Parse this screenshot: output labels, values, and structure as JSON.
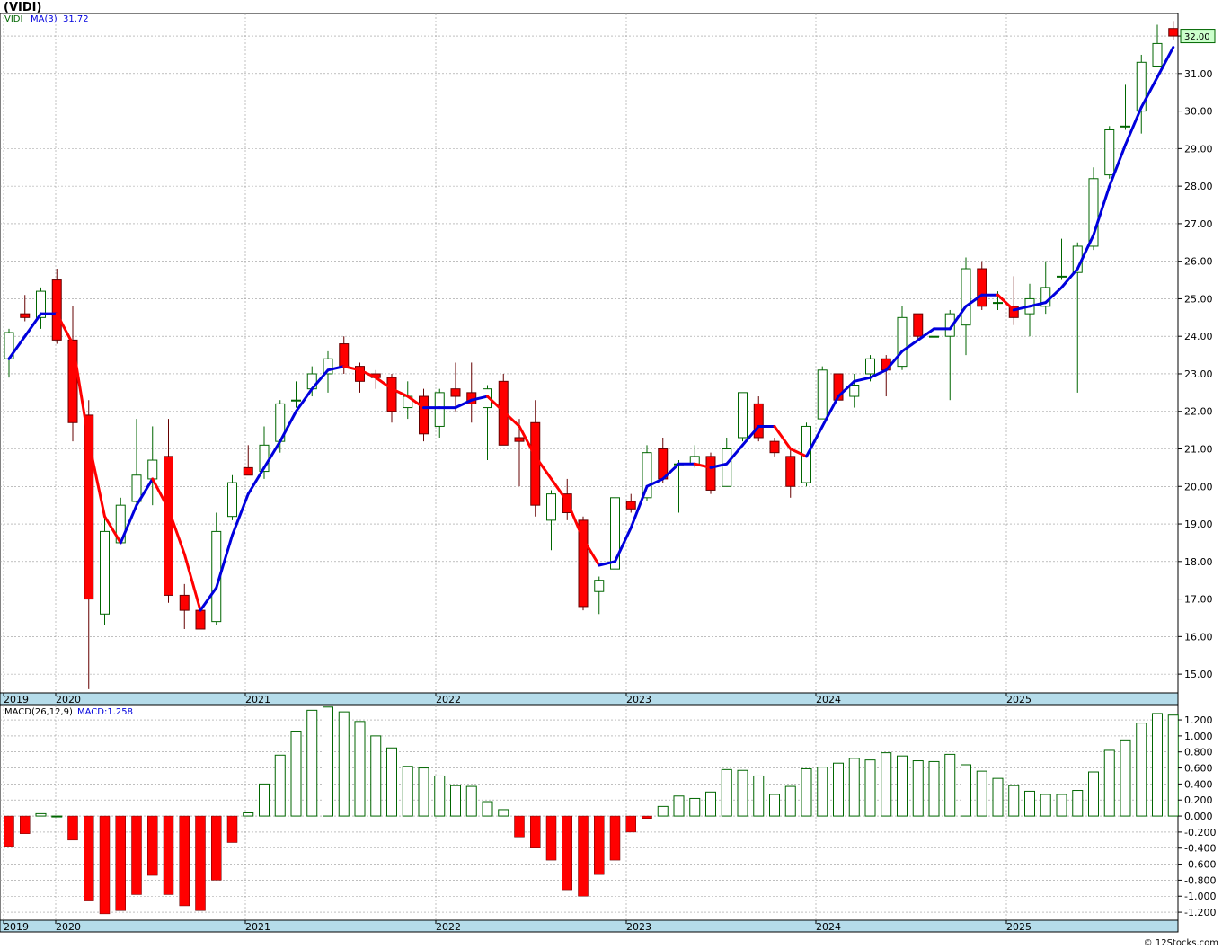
{
  "header": {
    "title": "(VIDI)"
  },
  "price_panel": {
    "legend_symbol": "VIDI",
    "legend_ma_label": "MA(3)",
    "legend_ma_value": "31.72",
    "last_price_tag": "32.00"
  },
  "macd_panel": {
    "legend_label": "MACD(26,12,9)",
    "legend_value_label": "MACD:1.258"
  },
  "footer": {
    "watermark": "© 12Stocks.com"
  },
  "colors": {
    "up": "#006600",
    "down": "#ff0000",
    "ma_up": "#0000dd",
    "ma_down": "#ff0000",
    "axis_band": "#b5dcea",
    "tag_bg": "#ccffcc"
  },
  "chart_data": [
    {
      "type": "candlestick",
      "title": "(VIDI)",
      "series_name": "VIDI",
      "frequency": "monthly",
      "ylim": [
        14.5,
        32.6
      ],
      "y_ticks": [
        15,
        16,
        17,
        18,
        19,
        20,
        21,
        22,
        23,
        24,
        25,
        26,
        27,
        28,
        29,
        30,
        31,
        32
      ],
      "y_tick_labels": [
        "15.00",
        "16.00",
        "17.00",
        "18.00",
        "19.00",
        "20.00",
        "21.00",
        "22.00",
        "23.00",
        "24.00",
        "25.00",
        "26.00",
        "27.00",
        "28.00",
        "29.00",
        "30.00",
        "31.00",
        "32.00"
      ],
      "x_year_labels": [
        "2019",
        "2020",
        "2021",
        "2022",
        "2023",
        "2024",
        "2025"
      ],
      "grid": true,
      "candles": [
        {
          "o": 23.4,
          "h": 24.2,
          "l": 22.9,
          "c": 24.1
        },
        {
          "o": 24.6,
          "h": 25.1,
          "l": 24.4,
          "c": 24.5
        },
        {
          "o": 24.5,
          "h": 25.3,
          "l": 24.2,
          "c": 25.2
        },
        {
          "o": 25.5,
          "h": 25.8,
          "l": 23.8,
          "c": 23.9
        },
        {
          "o": 23.9,
          "h": 24.8,
          "l": 21.2,
          "c": 21.7
        },
        {
          "o": 21.9,
          "h": 22.3,
          "l": 14.6,
          "c": 17.0
        },
        {
          "o": 16.6,
          "h": 19.2,
          "l": 16.3,
          "c": 18.8
        },
        {
          "o": 18.5,
          "h": 19.7,
          "l": 18.5,
          "c": 19.5
        },
        {
          "o": 19.6,
          "h": 21.8,
          "l": 19.5,
          "c": 20.3
        },
        {
          "o": 20.2,
          "h": 21.6,
          "l": 19.5,
          "c": 20.7
        },
        {
          "o": 20.8,
          "h": 21.8,
          "l": 16.9,
          "c": 17.1
        },
        {
          "o": 17.1,
          "h": 17.4,
          "l": 16.2,
          "c": 16.7
        },
        {
          "o": 16.7,
          "h": 16.8,
          "l": 16.2,
          "c": 16.2
        },
        {
          "o": 16.4,
          "h": 19.3,
          "l": 16.3,
          "c": 18.8
        },
        {
          "o": 19.2,
          "h": 20.3,
          "l": 19.1,
          "c": 20.1
        },
        {
          "o": 20.5,
          "h": 21.1,
          "l": 20.3,
          "c": 20.3
        },
        {
          "o": 20.4,
          "h": 21.6,
          "l": 20.2,
          "c": 21.1
        },
        {
          "o": 21.2,
          "h": 22.3,
          "l": 20.9,
          "c": 22.2
        },
        {
          "o": 22.3,
          "h": 22.8,
          "l": 22.1,
          "c": 22.3
        },
        {
          "o": 22.6,
          "h": 23.2,
          "l": 22.4,
          "c": 23.0
        },
        {
          "o": 23.0,
          "h": 23.6,
          "l": 22.5,
          "c": 23.4
        },
        {
          "o": 23.8,
          "h": 24.0,
          "l": 23.0,
          "c": 23.2
        },
        {
          "o": 23.2,
          "h": 23.3,
          "l": 22.5,
          "c": 22.8
        },
        {
          "o": 23.0,
          "h": 23.1,
          "l": 22.6,
          "c": 22.9
        },
        {
          "o": 22.9,
          "h": 23.0,
          "l": 21.7,
          "c": 22.0
        },
        {
          "o": 22.1,
          "h": 22.8,
          "l": 21.8,
          "c": 22.4
        },
        {
          "o": 22.4,
          "h": 22.6,
          "l": 21.2,
          "c": 21.4
        },
        {
          "o": 21.6,
          "h": 22.6,
          "l": 21.3,
          "c": 22.5
        },
        {
          "o": 22.6,
          "h": 23.3,
          "l": 22.0,
          "c": 22.4
        },
        {
          "o": 22.5,
          "h": 23.3,
          "l": 21.7,
          "c": 22.2
        },
        {
          "o": 22.1,
          "h": 22.7,
          "l": 20.7,
          "c": 22.6
        },
        {
          "o": 22.8,
          "h": 23.0,
          "l": 21.1,
          "c": 21.1
        },
        {
          "o": 21.3,
          "h": 21.8,
          "l": 20.0,
          "c": 21.2
        },
        {
          "o": 21.7,
          "h": 22.3,
          "l": 19.2,
          "c": 19.5
        },
        {
          "o": 19.1,
          "h": 19.9,
          "l": 18.3,
          "c": 19.8
        },
        {
          "o": 19.8,
          "h": 20.2,
          "l": 19.1,
          "c": 19.3
        },
        {
          "o": 19.1,
          "h": 19.2,
          "l": 16.7,
          "c": 16.8
        },
        {
          "o": 17.2,
          "h": 17.6,
          "l": 16.6,
          "c": 17.5
        },
        {
          "o": 17.8,
          "h": 19.7,
          "l": 17.7,
          "c": 19.7
        },
        {
          "o": 19.6,
          "h": 19.8,
          "l": 19.3,
          "c": 19.4
        },
        {
          "o": 19.7,
          "h": 21.1,
          "l": 19.6,
          "c": 20.9
        },
        {
          "o": 21.0,
          "h": 21.3,
          "l": 20.1,
          "c": 20.2
        },
        {
          "o": 20.6,
          "h": 20.7,
          "l": 19.3,
          "c": 20.6
        },
        {
          "o": 20.6,
          "h": 21.1,
          "l": 20.5,
          "c": 20.8
        },
        {
          "o": 20.8,
          "h": 20.9,
          "l": 19.8,
          "c": 19.9
        },
        {
          "o": 20.0,
          "h": 21.3,
          "l": 20.0,
          "c": 21.0
        },
        {
          "o": 21.3,
          "h": 22.5,
          "l": 21.2,
          "c": 22.5
        },
        {
          "o": 22.2,
          "h": 22.4,
          "l": 21.2,
          "c": 21.3
        },
        {
          "o": 21.2,
          "h": 21.3,
          "l": 20.8,
          "c": 20.9
        },
        {
          "o": 20.8,
          "h": 21.0,
          "l": 19.7,
          "c": 20.0
        },
        {
          "o": 20.1,
          "h": 21.7,
          "l": 20.0,
          "c": 21.6
        },
        {
          "o": 21.8,
          "h": 23.2,
          "l": 21.8,
          "c": 23.1
        },
        {
          "o": 23.0,
          "h": 23.0,
          "l": 22.3,
          "c": 22.3
        },
        {
          "o": 22.4,
          "h": 23.0,
          "l": 22.1,
          "c": 22.7
        },
        {
          "o": 23.0,
          "h": 23.5,
          "l": 22.8,
          "c": 23.4
        },
        {
          "o": 23.4,
          "h": 23.5,
          "l": 22.4,
          "c": 23.1
        },
        {
          "o": 23.2,
          "h": 24.8,
          "l": 23.1,
          "c": 24.5
        },
        {
          "o": 24.6,
          "h": 24.6,
          "l": 23.9,
          "c": 24.0
        },
        {
          "o": 24.0,
          "h": 24.0,
          "l": 23.8,
          "c": 24.0
        },
        {
          "o": 24.0,
          "h": 24.7,
          "l": 22.3,
          "c": 24.6
        },
        {
          "o": 24.3,
          "h": 26.1,
          "l": 23.5,
          "c": 25.8
        },
        {
          "o": 25.8,
          "h": 26.0,
          "l": 24.7,
          "c": 24.8
        },
        {
          "o": 24.9,
          "h": 25.2,
          "l": 24.7,
          "c": 24.9
        },
        {
          "o": 24.8,
          "h": 25.6,
          "l": 24.3,
          "c": 24.5
        },
        {
          "o": 24.6,
          "h": 25.4,
          "l": 24.0,
          "c": 25.0
        },
        {
          "o": 24.8,
          "h": 26.0,
          "l": 24.6,
          "c": 25.3
        },
        {
          "o": 25.6,
          "h": 26.6,
          "l": 25.5,
          "c": 25.6
        },
        {
          "o": 25.7,
          "h": 26.5,
          "l": 22.5,
          "c": 26.4
        },
        {
          "o": 26.4,
          "h": 28.5,
          "l": 26.3,
          "c": 28.2
        },
        {
          "o": 28.3,
          "h": 29.6,
          "l": 28.2,
          "c": 29.5
        },
        {
          "o": 29.6,
          "h": 30.7,
          "l": 29.5,
          "c": 29.6
        },
        {
          "o": 30.0,
          "h": 31.5,
          "l": 29.4,
          "c": 31.3
        },
        {
          "o": 31.2,
          "h": 32.3,
          "l": 31.2,
          "c": 31.8
        },
        {
          "o": 32.2,
          "h": 32.4,
          "l": 31.9,
          "c": 32.0
        }
      ],
      "ma3": [
        23.4,
        24.0,
        24.6,
        24.6,
        23.8,
        21.2,
        19.2,
        18.5,
        19.5,
        20.2,
        19.4,
        18.2,
        16.7,
        17.3,
        18.7,
        19.8,
        20.5,
        21.2,
        22.0,
        22.6,
        23.1,
        23.2,
        23.1,
        22.9,
        22.6,
        22.4,
        22.1,
        22.1,
        22.1,
        22.3,
        22.4,
        22.0,
        21.6,
        20.8,
        20.2,
        19.6,
        18.6,
        17.9,
        18.0,
        18.9,
        20.0,
        20.2,
        20.6,
        20.6,
        20.5,
        20.6,
        21.1,
        21.6,
        21.6,
        21.0,
        20.8,
        21.6,
        22.4,
        22.8,
        22.9,
        23.1,
        23.6,
        23.9,
        24.2,
        24.2,
        24.8,
        25.1,
        25.1,
        24.7,
        24.8,
        24.9,
        25.3,
        25.8,
        26.7,
        28.0,
        29.1,
        30.1,
        30.9,
        31.7
      ]
    },
    {
      "type": "bar",
      "title": "MACD(26,12,9)",
      "series_name": "MACD",
      "ylim": [
        -1.3,
        1.38
      ],
      "y_ticks": [
        -1.2,
        -1.0,
        -0.8,
        -0.6,
        -0.4,
        -0.2,
        0.0,
        0.2,
        0.4,
        0.6,
        0.8,
        1.0,
        1.2
      ],
      "y_tick_labels": [
        "-1.200",
        "-1.000",
        "-0.800",
        "-0.600",
        "-0.400",
        "-0.200",
        "0.000",
        "0.200",
        "0.400",
        "0.600",
        "0.800",
        "1.000",
        "1.200"
      ],
      "x_year_labels": [
        "2019",
        "2020",
        "2021",
        "2022",
        "2023",
        "2024",
        "2025"
      ],
      "grid": true,
      "values": [
        -0.38,
        -0.22,
        0.03,
        0.0,
        -0.3,
        -1.06,
        -1.22,
        -1.18,
        -0.98,
        -0.74,
        -0.98,
        -1.12,
        -1.18,
        -0.8,
        -0.33,
        0.04,
        0.4,
        0.76,
        1.06,
        1.32,
        1.36,
        1.3,
        1.18,
        1.0,
        0.85,
        0.62,
        0.6,
        0.5,
        0.38,
        0.37,
        0.18,
        0.08,
        -0.26,
        -0.4,
        -0.55,
        -0.92,
        -1.0,
        -0.73,
        -0.55,
        -0.2,
        -0.03,
        0.12,
        0.25,
        0.22,
        0.3,
        0.58,
        0.57,
        0.5,
        0.27,
        0.37,
        0.59,
        0.61,
        0.66,
        0.72,
        0.7,
        0.79,
        0.75,
        0.69,
        0.68,
        0.77,
        0.64,
        0.56,
        0.47,
        0.38,
        0.31,
        0.27,
        0.27,
        0.32,
        0.55,
        0.82,
        0.95,
        1.16,
        1.28,
        1.26
      ]
    }
  ]
}
